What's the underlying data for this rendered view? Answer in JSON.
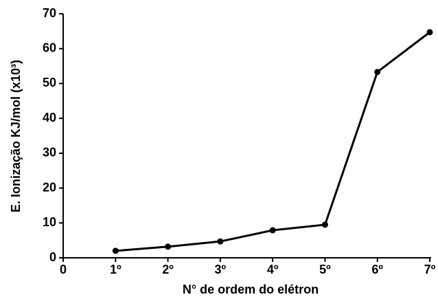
{
  "chart_data": {
    "type": "line",
    "ylabel": "E. Ionização KJ/mol (x10³)",
    "xlabel": "N° de ordem do elétron",
    "categories": [
      "0",
      "1º",
      "2º",
      "3º",
      "4º",
      "5º",
      "6º",
      "7º"
    ],
    "series": [
      {
        "color": "#000000",
        "values": [
          null,
          2.0,
          3.2,
          4.7,
          7.9,
          9.5,
          53.3,
          64.7
        ]
      }
    ],
    "ylim": [
      0,
      70
    ],
    "yticks": [
      0,
      10,
      20,
      30,
      40,
      50,
      60,
      70
    ]
  }
}
